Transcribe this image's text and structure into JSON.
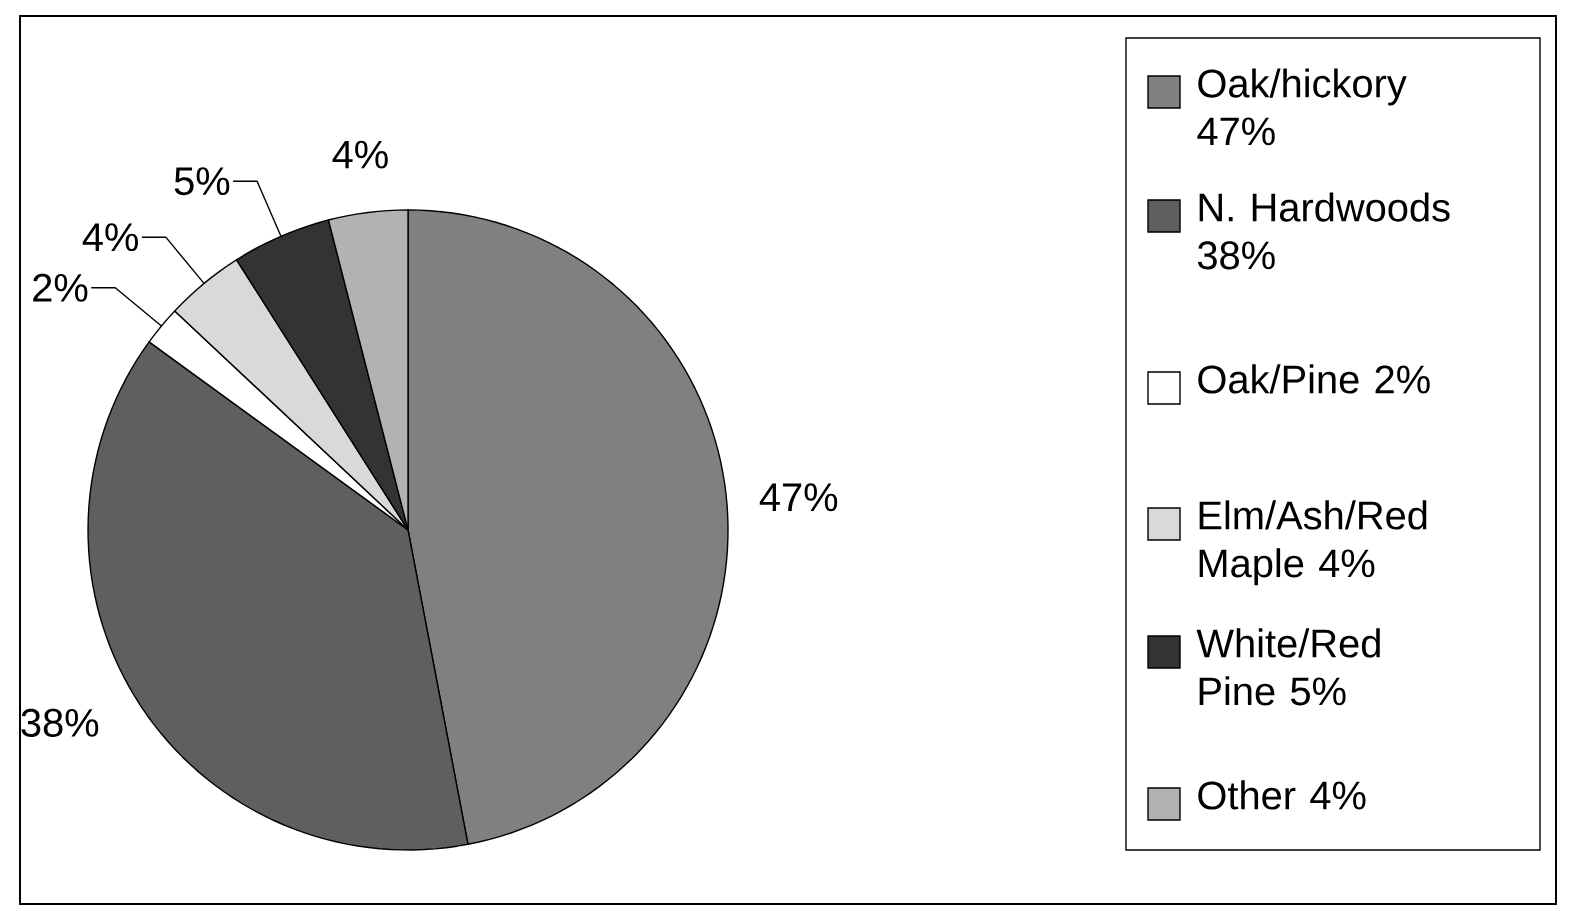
{
  "chart_data": {
    "type": "pie",
    "categories": [
      "Oak/hickory 47%",
      "N. Hardwoods 38%",
      "Oak/Pine 2%",
      "Elm/Ash/Red Maple 4%",
      "White/Red Pine 5%",
      "Other 4%"
    ],
    "values": [
      47,
      38,
      2,
      4,
      5,
      4
    ],
    "colors": [
      "#808080",
      "#5f5f5f",
      "#ffffff",
      "#d9d9d9",
      "#333333",
      "#b2b2b2"
    ],
    "value_labels": [
      "47%",
      "38%",
      "2%",
      "4%",
      "5%",
      "4%"
    ],
    "legend": "right"
  }
}
